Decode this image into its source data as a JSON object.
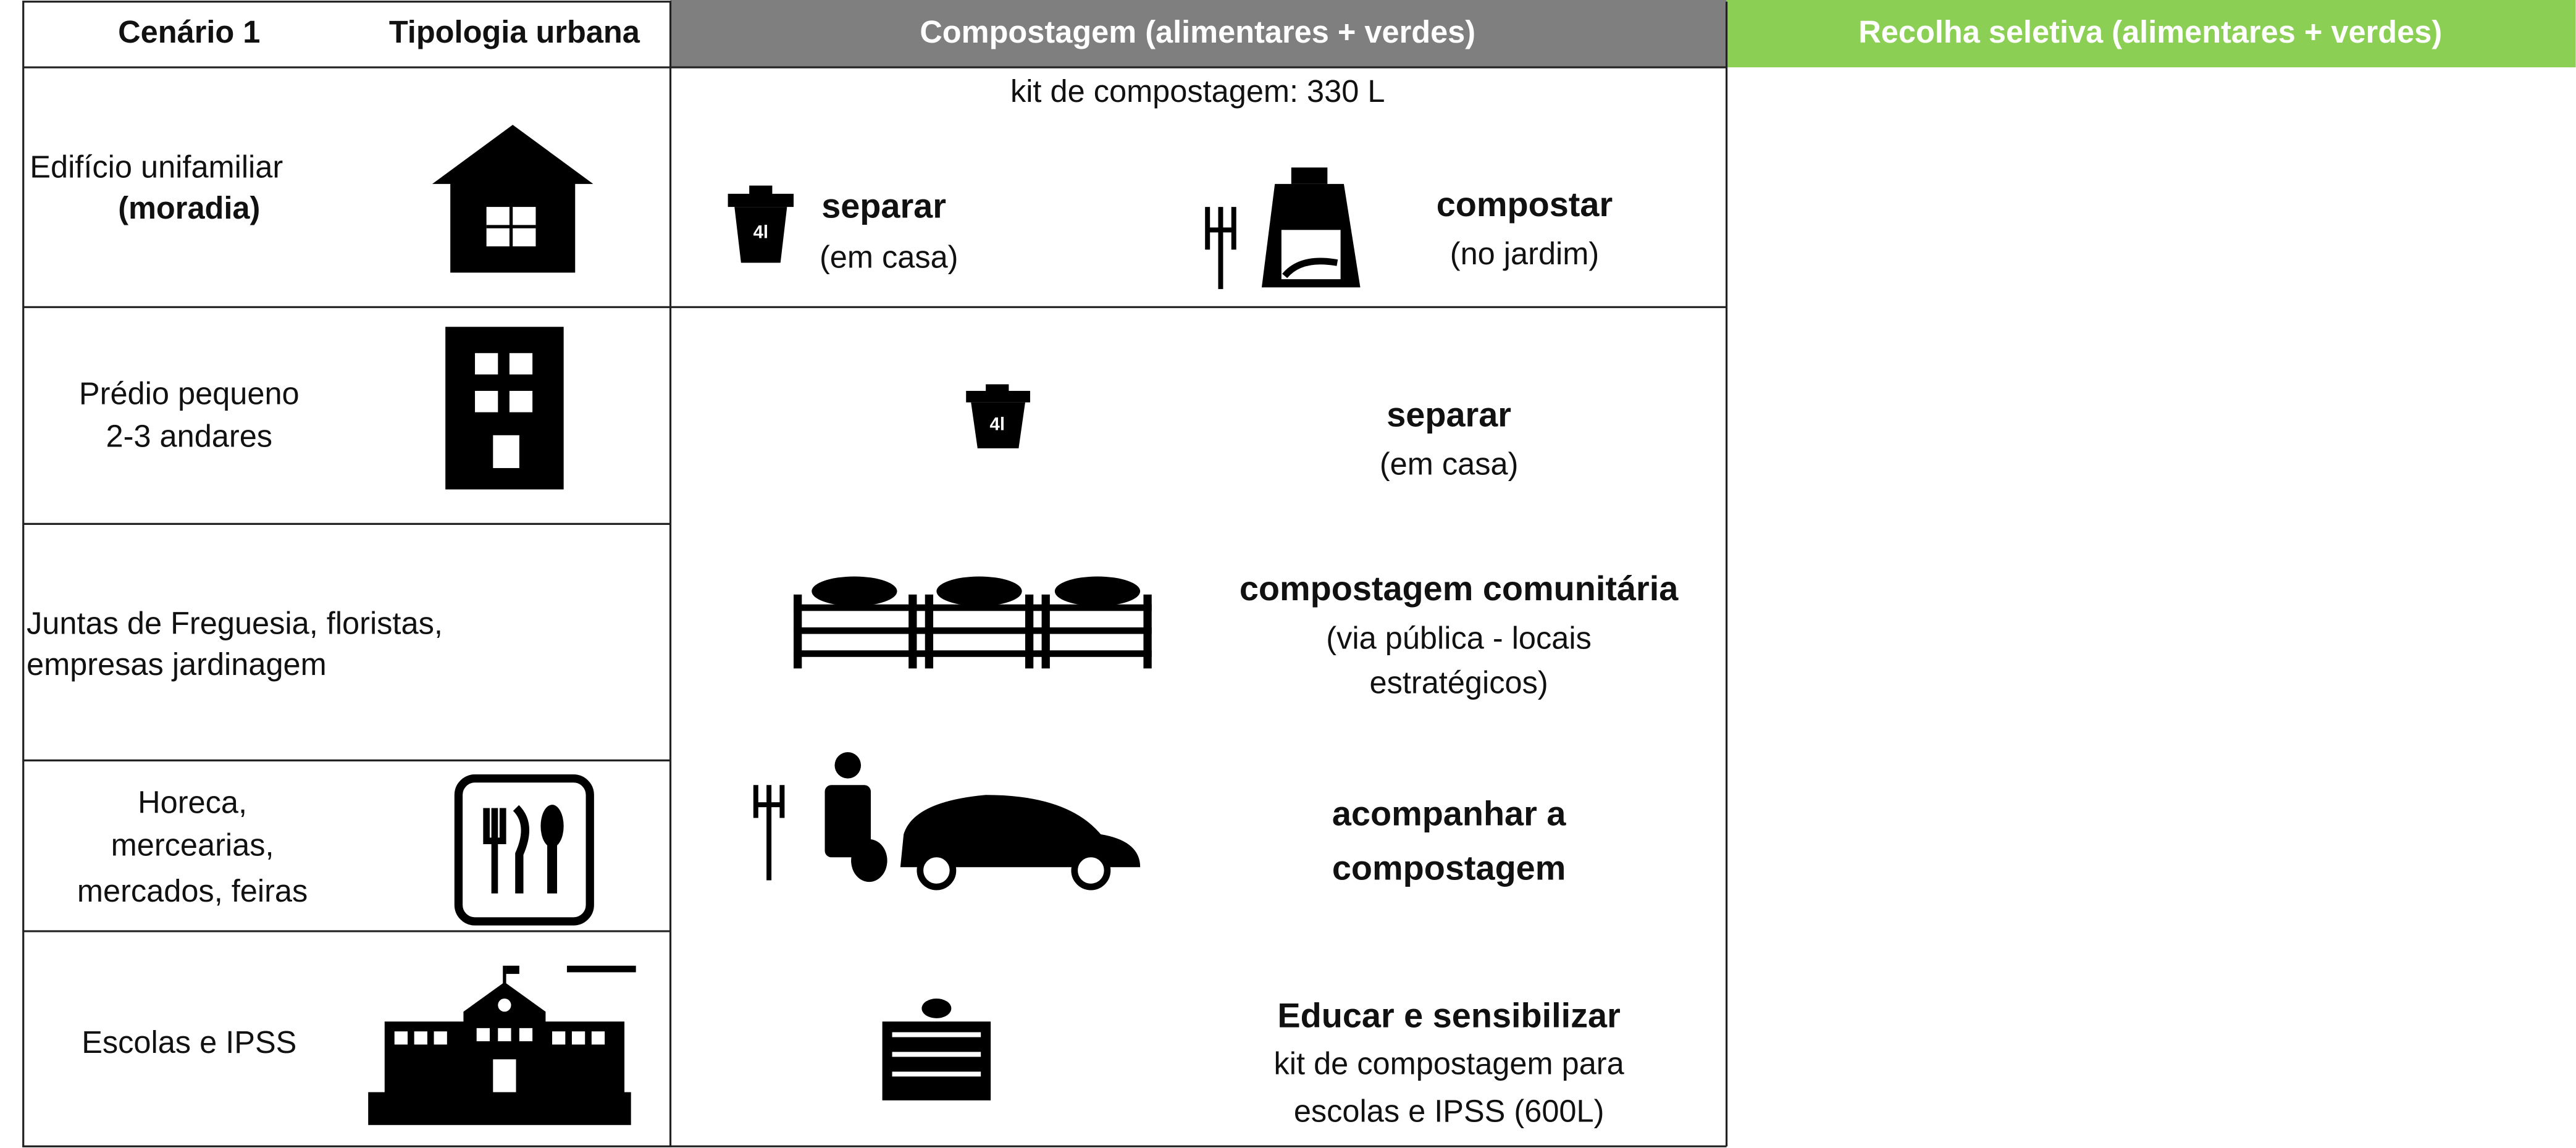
{
  "header": {
    "scenario": "Cenário 1",
    "typology": "Tipologia urbana",
    "composting": "Compostagem (alimentares + verdes)",
    "collection": "Recolha seletiva (alimentares + verdes)"
  },
  "typologies": [
    {
      "lines": [
        "Edifício unifamiliar",
        "(moradia)"
      ]
    },
    {
      "lines": [
        "Prédio pequeno",
        "2-3 andares"
      ]
    },
    {
      "lines": [
        "Juntas de Freguesia, floristas,",
        "empresas jardinagem"
      ]
    },
    {
      "lines": [
        "Horeca,",
        "mercearias,",
        "mercados, feiras"
      ]
    },
    {
      "lines": [
        "Escolas e IPSS"
      ]
    }
  ],
  "composting": {
    "kit": "kit de compostagem: 330 L",
    "home": [
      {
        "title": [
          "separar"
        ],
        "note": [
          "(em casa)"
        ]
      },
      {
        "title": [
          "compostar"
        ],
        "note": [
          "(no jardim)"
        ]
      }
    ],
    "shared": [
      {
        "title": [
          "separar"
        ],
        "note": [
          "(em casa)"
        ]
      },
      {
        "title": [
          "compostagem comunitária"
        ],
        "note": [
          "(via pública - locais",
          "estratégicos)"
        ]
      },
      {
        "title": [
          "acompanhar a",
          "compostagem"
        ],
        "note": []
      },
      {
        "title": [
          "Educar e sensibilizar"
        ],
        "note": [
          "kit de compostagem para",
          "escolas e IPSS (600L)"
        ]
      }
    ]
  }
}
